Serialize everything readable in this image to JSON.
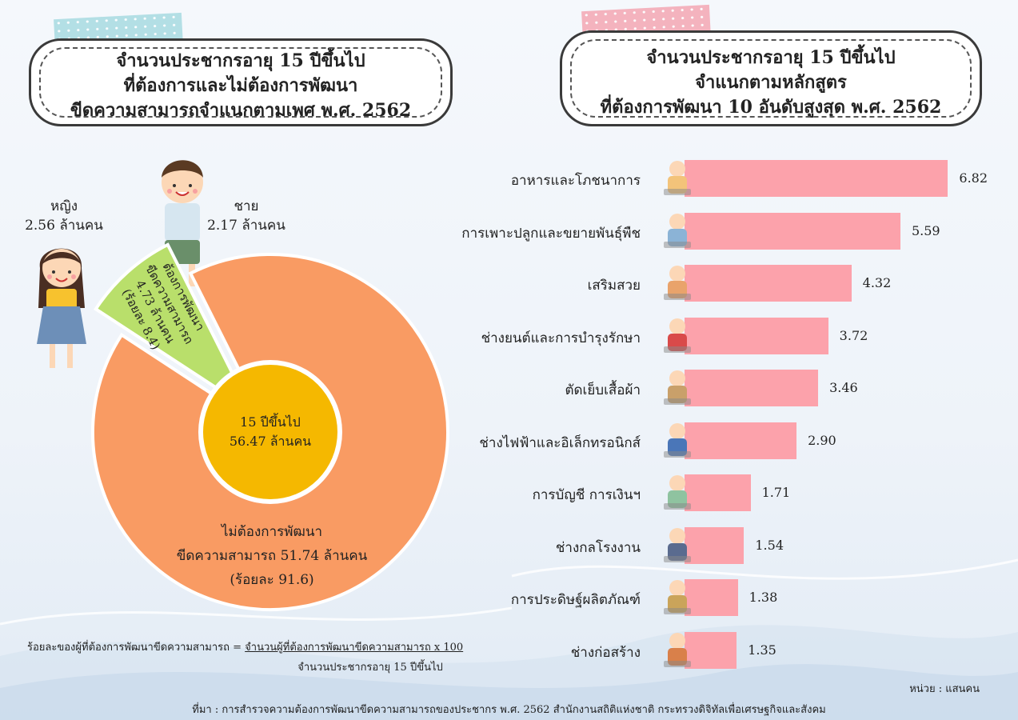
{
  "left_panel": {
    "title_lines": [
      "จำนวนประชากรอายุ 15 ปีขึ้นไป",
      "ที่ต้องการและไม่ต้องการพัฒนา",
      "ขีดความสามารถจำแนกตามเพศ พ.ศ. 2562"
    ],
    "female": {
      "label": "หญิง",
      "value": "2.56 ล้านคน"
    },
    "male": {
      "label": "ชาย",
      "value": "2.17 ล้านคน"
    },
    "center": {
      "line1": "15 ปีขึ้นไป",
      "line2": "56.47 ล้านคน"
    },
    "want_segment": {
      "line1": "ต้องการพัฒนา",
      "line2": "ขีดความสามารถ",
      "line3": "4.73 ล้านคน",
      "line4": "(ร้อยละ 8.4)"
    },
    "not_want_segment": {
      "line1": "ไม่ต้องการพัฒนา",
      "line2": "ขีดความสามารถ 51.74 ล้านคน",
      "line3": "(ร้อยละ 91.6)"
    },
    "formula": {
      "left": "ร้อยละของผู้ที่ต้องการพัฒนาขีดความสามารถ =",
      "numerator": "จำนวนผู้ที่ต้องการพัฒนาขีดความสามารถ x 100",
      "denominator": "จำนวนประชากรอายุ 15 ปีขึ้นไป"
    }
  },
  "right_panel": {
    "title_lines": [
      "จำนวนประชากรอายุ 15 ปีขึ้นไป",
      "จำแนกตามหลักสูตร",
      "ที่ต้องการพัฒนา 10 อันดับสูงสุด พ.ศ. 2562"
    ],
    "unit": "หน่วย : แสนคน"
  },
  "source": "ที่มา : การสำรวจความต้องการพัฒนาขีดความสามารถของประชากร พ.ศ. 2562 สำนักงานสถิติแห่งชาติ กระทรวงดิจิทัลเพื่อเศรษฐกิจและสังคม",
  "colors": {
    "pie_want": "#b9df6b",
    "pie_not_want": "#f99b63",
    "pie_center": "#f5b800",
    "bar": "#fca2ab"
  },
  "chart_data": [
    {
      "type": "pie",
      "categories": [
        "ต้องการพัฒนาขีดความสามารถ",
        "ไม่ต้องการพัฒนาขีดความสามารถ"
      ],
      "values": [
        4.73,
        51.74
      ],
      "percent": [
        8.4,
        91.6
      ],
      "total": 56.47
    },
    {
      "type": "bar",
      "orientation": "horizontal",
      "categories": [
        "อาหารและโภชนาการ",
        "การเพาะปลูกและขยายพันธุ์พืช",
        "เสริมสวย",
        "ช่างยนต์และการบำรุงรักษา",
        "ตัดเย็บเสื้อผ้า",
        "ช่างไฟฟ้าและอิเล็กทรอนิกส์",
        "การบัญชี การเงินฯ",
        "ช่างกลโรงงาน",
        "การประดิษฐ์ผลิตภัณฑ์",
        "ช่างก่อสร้าง"
      ],
      "values": [
        6.82,
        5.59,
        4.32,
        3.72,
        3.46,
        2.9,
        1.71,
        1.54,
        1.38,
        1.35
      ],
      "value_labels": [
        "6.82",
        "5.59",
        "4.32",
        "3.72",
        "3.46",
        "2.90",
        "1.71",
        "1.54",
        "1.38",
        "1.35"
      ],
      "icons": [
        "chef-icon",
        "farmer-icon",
        "hairdresser-icon",
        "mechanic-icon",
        "tailor-icon",
        "electrician-icon",
        "accountant-icon",
        "machinist-icon",
        "craftsman-icon",
        "builder-icon"
      ]
    }
  ]
}
